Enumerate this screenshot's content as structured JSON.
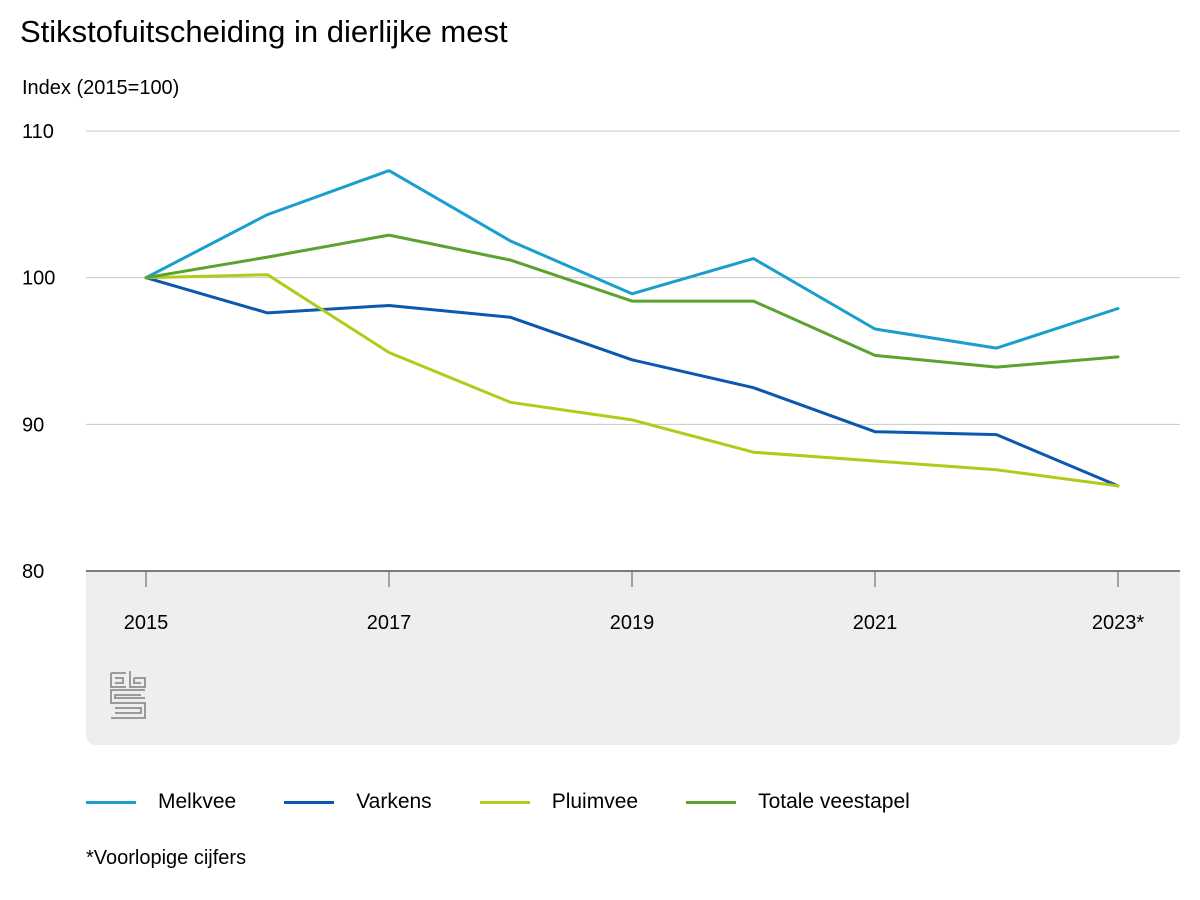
{
  "chart_data": {
    "type": "line",
    "title": "Stikstofuitscheiding in dierlijke mest",
    "ylabel": "Index (2015=100)",
    "xlabel": "",
    "x": [
      2015,
      2016,
      2017,
      2018,
      2019,
      2020,
      2021,
      2022,
      2023
    ],
    "x_tick_labels": [
      "2015",
      "2017",
      "2019",
      "2021",
      "2023*"
    ],
    "x_tick_values": [
      2015,
      2017,
      2019,
      2021,
      2023
    ],
    "ylim": [
      80,
      110
    ],
    "y_ticks": [
      80,
      90,
      100,
      110
    ],
    "grid": "horizontal",
    "legend_position": "bottom",
    "series": [
      {
        "name": "Melkvee",
        "color": "#1a9ecd",
        "values": [
          100,
          104.3,
          107.3,
          102.5,
          98.9,
          101.3,
          96.5,
          95.2,
          97.9
        ]
      },
      {
        "name": "Varkens",
        "color": "#0a58b0",
        "values": [
          100,
          97.6,
          98.1,
          97.3,
          94.4,
          92.5,
          89.5,
          89.3,
          85.8
        ]
      },
      {
        "name": "Pluimvee",
        "color": "#b2cb1a",
        "values": [
          100,
          100.2,
          94.9,
          91.5,
          90.3,
          88.1,
          87.5,
          86.9,
          85.8
        ]
      },
      {
        "name": "Totale veestapel",
        "color": "#5ba22e",
        "values": [
          100,
          101.4,
          102.9,
          101.2,
          98.4,
          98.4,
          94.7,
          93.9,
          94.6
        ]
      }
    ],
    "footnote": "*Voorlopige cijfers"
  },
  "colors": {
    "grid": "#c8c8c8",
    "axis": "#555555",
    "footer_panel": "#eeeeee",
    "logo": "#9a9a9a"
  },
  "logo_icon": "cbs-logo-icon"
}
